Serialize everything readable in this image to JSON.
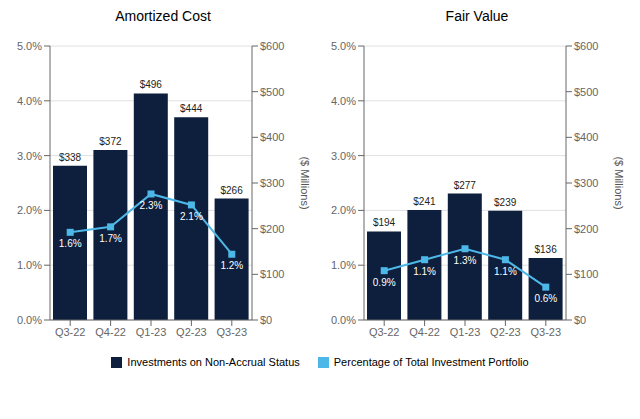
{
  "chart_data": [
    {
      "type": "bar",
      "title": "Amortized Cost",
      "categories": [
        "Q3-22",
        "Q4-22",
        "Q1-23",
        "Q2-23",
        "Q3-23"
      ],
      "series": [
        {
          "name": "Investments on Non-Accrual Status",
          "type": "bar",
          "color": "#0d1f3c",
          "axis": "y2",
          "values": [
            338,
            372,
            496,
            444,
            266
          ],
          "value_labels": [
            "$338",
            "$372",
            "$496",
            "$444",
            "$266"
          ]
        },
        {
          "name": "Percentage of Total Investment Portfolio",
          "type": "line",
          "color": "#4db8e8",
          "marker": "square",
          "values": [
            1.6,
            1.7,
            2.3,
            2.1,
            1.2
          ],
          "value_labels": [
            "1.6%",
            "1.7%",
            "2.3%",
            "2.1%",
            "1.2%"
          ]
        }
      ],
      "ylim": [
        0,
        5.0
      ],
      "yticks": [
        {
          "value": 0,
          "label": "0.0%"
        },
        {
          "value": 1.0,
          "label": "1.0%"
        },
        {
          "value": 2.0,
          "label": "2.0%"
        },
        {
          "value": 3.0,
          "label": "3.0%"
        },
        {
          "value": 4.0,
          "label": "4.0%"
        },
        {
          "value": 5.0,
          "label": "5.0%"
        }
      ],
      "y2lim": [
        0,
        600
      ],
      "y2ticks": [
        {
          "value": 0,
          "label": "$0"
        },
        {
          "value": 100,
          "label": "$100"
        },
        {
          "value": 200,
          "label": "$200"
        },
        {
          "value": 300,
          "label": "$300"
        },
        {
          "value": 400,
          "label": "$400"
        },
        {
          "value": 500,
          "label": "$500"
        },
        {
          "value": 600,
          "label": "$600"
        }
      ],
      "y2label": "($ Millions)",
      "grid": true,
      "data_labels": true,
      "legend": "bottom"
    },
    {
      "type": "bar",
      "title": "Fair Value",
      "categories": [
        "Q3-22",
        "Q4-22",
        "Q1-23",
        "Q2-23",
        "Q3-23"
      ],
      "series": [
        {
          "name": "Investments on Non-Accrual Status",
          "type": "bar",
          "color": "#0d1f3c",
          "axis": "y2",
          "values": [
            194,
            241,
            277,
            239,
            136
          ],
          "value_labels": [
            "$194",
            "$241",
            "$277",
            "$239",
            "$136"
          ]
        },
        {
          "name": "Percentage of Total Investment Portfolio",
          "type": "line",
          "color": "#4db8e8",
          "marker": "square",
          "values": [
            0.9,
            1.1,
            1.3,
            1.1,
            0.6
          ],
          "value_labels": [
            "0.9%",
            "1.1%",
            "1.3%",
            "1.1%",
            "0.6%"
          ]
        }
      ],
      "ylim": [
        0,
        5.0
      ],
      "yticks": [
        {
          "value": 0,
          "label": "0.0%"
        },
        {
          "value": 1.0,
          "label": "1.0%"
        },
        {
          "value": 2.0,
          "label": "2.0%"
        },
        {
          "value": 3.0,
          "label": "3.0%"
        },
        {
          "value": 4.0,
          "label": "4.0%"
        },
        {
          "value": 5.0,
          "label": "5.0%"
        }
      ],
      "y2lim": [
        0,
        600
      ],
      "y2ticks": [
        {
          "value": 0,
          "label": "$0"
        },
        {
          "value": 100,
          "label": "$100"
        },
        {
          "value": 200,
          "label": "$200"
        },
        {
          "value": 300,
          "label": "$300"
        },
        {
          "value": 400,
          "label": "$400"
        },
        {
          "value": 500,
          "label": "$500"
        },
        {
          "value": 600,
          "label": "$600"
        }
      ],
      "y2label": "($ Millions)",
      "grid": true,
      "data_labels": true,
      "legend": "bottom"
    }
  ]
}
